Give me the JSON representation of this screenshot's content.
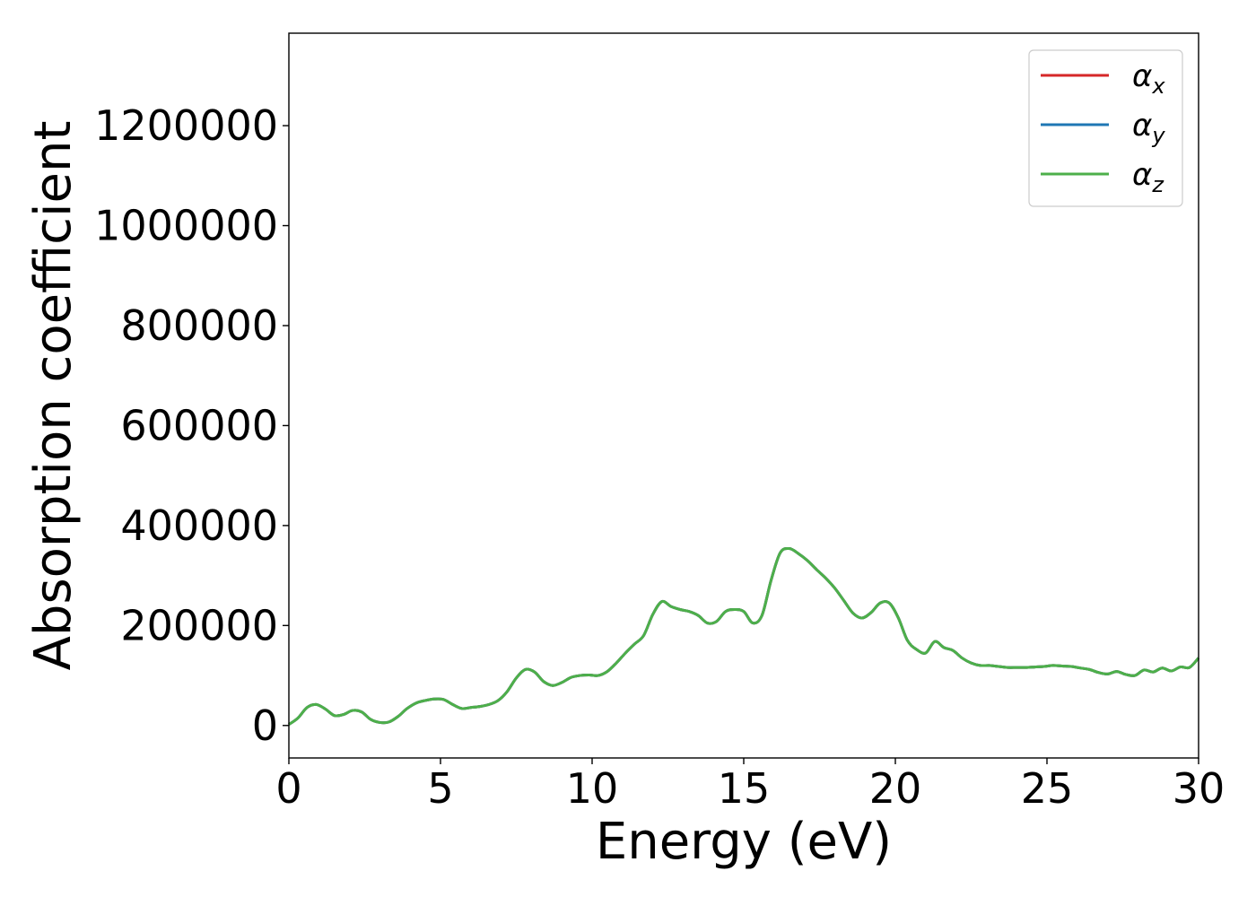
{
  "chart_data": {
    "type": "line",
    "xlabel": "Energy (eV)",
    "ylabel": "Absorption coefficient",
    "xlim": [
      0,
      30
    ],
    "ylim": [
      -65000,
      1385000
    ],
    "xticks": [
      0,
      5,
      10,
      15,
      20,
      25,
      30
    ],
    "yticks": [
      0,
      200000,
      400000,
      600000,
      800000,
      1000000,
      1200000
    ],
    "xtick_labels": [
      "0",
      "5",
      "10",
      "15",
      "20",
      "25",
      "30"
    ],
    "ytick_labels": [
      "0",
      "200000",
      "400000",
      "600000",
      "800000",
      "1000000",
      "1200000"
    ],
    "grid": false,
    "legend_position": "top-right",
    "x": [
      0,
      0.3,
      0.6,
      0.9,
      1.2,
      1.5,
      1.8,
      2.1,
      2.4,
      2.7,
      3.0,
      3.3,
      3.6,
      3.9,
      4.2,
      4.5,
      4.8,
      5.1,
      5.4,
      5.7,
      6.0,
      6.3,
      6.6,
      6.9,
      7.2,
      7.5,
      7.8,
      8.1,
      8.4,
      8.7,
      9.0,
      9.3,
      9.6,
      9.9,
      10.2,
      10.5,
      10.8,
      11.1,
      11.4,
      11.7,
      12.0,
      12.3,
      12.6,
      12.9,
      13.2,
      13.5,
      13.8,
      14.1,
      14.4,
      14.7,
      15.0,
      15.3,
      15.6,
      15.9,
      16.2,
      16.5,
      16.8,
      17.1,
      17.4,
      17.7,
      18.0,
      18.3,
      18.6,
      18.9,
      19.2,
      19.5,
      19.8,
      20.1,
      20.4,
      20.7,
      21.0,
      21.3,
      21.6,
      21.9,
      22.2,
      22.5,
      22.8,
      23.1,
      23.4,
      23.7,
      24.0,
      24.3,
      24.6,
      24.9,
      25.2,
      25.5,
      25.8,
      26.1,
      26.4,
      26.7,
      27.0,
      27.3,
      27.6,
      27.9,
      28.2,
      28.5,
      28.8,
      29.1,
      29.4,
      29.7,
      30.0
    ],
    "series": [
      {
        "name": "α_x",
        "color": "#d62728",
        "values": [
          2000,
          15000,
          36000,
          42000,
          33000,
          20000,
          22000,
          30000,
          27000,
          12000,
          6000,
          7000,
          18000,
          34000,
          45000,
          50000,
          53000,
          52000,
          42000,
          34000,
          36000,
          38000,
          42000,
          50000,
          68000,
          95000,
          112000,
          107000,
          88000,
          80000,
          86000,
          96000,
          100000,
          101000,
          100000,
          108000,
          125000,
          145000,
          163000,
          180000,
          222000,
          248000,
          238000,
          232000,
          228000,
          220000,
          205000,
          208000,
          228000,
          232000,
          228000,
          205000,
          220000,
          290000,
          345000,
          354000,
          344000,
          330000,
          312000,
          295000,
          275000,
          250000,
          225000,
          215000,
          226000,
          245000,
          245000,
          215000,
          170000,
          152000,
          145000,
          168000,
          156000,
          150000,
          135000,
          125000,
          120000,
          120000,
          118000,
          116000,
          116000,
          116000,
          117000,
          118000,
          120000,
          119000,
          118000,
          115000,
          112000,
          106000,
          103000,
          108000,
          102000,
          100000,
          111000,
          107000,
          115000,
          109000,
          117000,
          116000,
          135000
        ]
      },
      {
        "name": "α_y",
        "color": "#1f77b4",
        "values": [
          2000,
          15000,
          36000,
          42000,
          33000,
          20000,
          22000,
          30000,
          27000,
          12000,
          6000,
          7000,
          18000,
          34000,
          45000,
          50000,
          53000,
          52000,
          42000,
          34000,
          36000,
          38000,
          42000,
          50000,
          68000,
          95000,
          112000,
          107000,
          88000,
          80000,
          86000,
          96000,
          100000,
          101000,
          100000,
          108000,
          125000,
          145000,
          163000,
          180000,
          222000,
          248000,
          238000,
          232000,
          228000,
          220000,
          205000,
          208000,
          228000,
          232000,
          228000,
          205000,
          220000,
          290000,
          345000,
          354000,
          344000,
          330000,
          312000,
          295000,
          275000,
          250000,
          225000,
          215000,
          226000,
          245000,
          245000,
          215000,
          170000,
          152000,
          145000,
          168000,
          156000,
          150000,
          135000,
          125000,
          120000,
          120000,
          118000,
          116000,
          116000,
          116000,
          117000,
          118000,
          120000,
          119000,
          118000,
          115000,
          112000,
          106000,
          103000,
          108000,
          102000,
          100000,
          111000,
          107000,
          115000,
          109000,
          117000,
          116000,
          135000
        ]
      },
      {
        "name": "α_z",
        "color": "#4daf4a",
        "values": [
          2000,
          15000,
          36000,
          42000,
          33000,
          20000,
          22000,
          30000,
          27000,
          12000,
          6000,
          7000,
          18000,
          34000,
          45000,
          50000,
          53000,
          52000,
          42000,
          34000,
          36000,
          38000,
          42000,
          50000,
          68000,
          95000,
          112000,
          107000,
          88000,
          80000,
          86000,
          96000,
          100000,
          101000,
          100000,
          108000,
          125000,
          145000,
          163000,
          180000,
          222000,
          248000,
          238000,
          232000,
          228000,
          220000,
          205000,
          208000,
          228000,
          232000,
          228000,
          205000,
          220000,
          290000,
          345000,
          354000,
          344000,
          330000,
          312000,
          295000,
          275000,
          250000,
          225000,
          215000,
          226000,
          245000,
          245000,
          215000,
          170000,
          152000,
          145000,
          168000,
          156000,
          150000,
          135000,
          125000,
          120000,
          120000,
          118000,
          116000,
          116000,
          116000,
          117000,
          118000,
          120000,
          119000,
          118000,
          115000,
          112000,
          106000,
          103000,
          108000,
          102000,
          100000,
          111000,
          107000,
          115000,
          109000,
          117000,
          116000,
          135000
        ]
      }
    ],
    "legend": [
      {
        "symbol": "α",
        "subscript": "x",
        "color": "#d62728"
      },
      {
        "symbol": "α",
        "subscript": "y",
        "color": "#1f77b4"
      },
      {
        "symbol": "α",
        "subscript": "z",
        "color": "#4daf4a"
      }
    ]
  }
}
